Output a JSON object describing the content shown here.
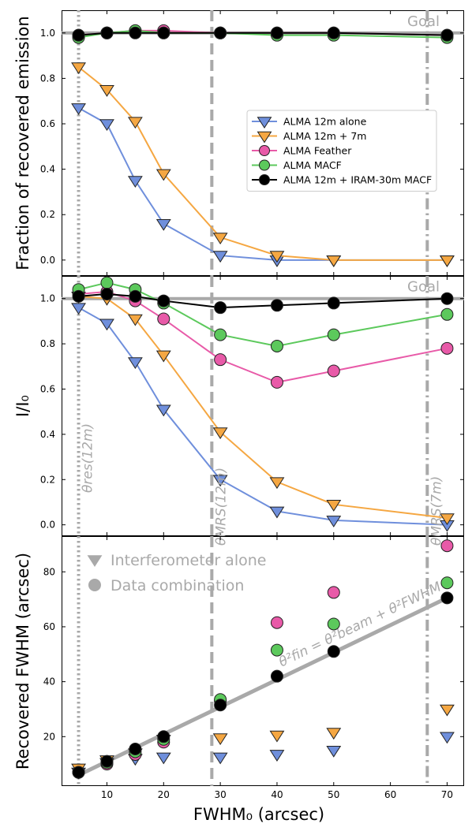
{
  "figure": {
    "xlabel": "FWHM₀ (arcsec)",
    "xlim": [
      2,
      73
    ],
    "xticks": [
      10,
      20,
      30,
      40,
      50,
      60,
      70
    ],
    "vlines": [
      {
        "x": 5,
        "style": "dotted",
        "label": "θres(12m)"
      },
      {
        "x": 28.5,
        "style": "dashed",
        "label": "θMRS(12m)"
      },
      {
        "x": 66.5,
        "style": "dashdot",
        "label": "θMRS(7m)"
      }
    ],
    "colors": {
      "alma12": "#6f8fdc",
      "alma12_7": "#f5a742",
      "feather": "#e85aa8",
      "macf": "#5cc95c",
      "iram": "#000000",
      "reference": "#a9a9a9"
    }
  },
  "chart_data": [
    {
      "type": "line",
      "ylabel": "Fraction of recovered emission",
      "ylim": [
        -0.07,
        1.1
      ],
      "yticks": [
        0.0,
        0.2,
        0.4,
        0.6,
        0.8,
        1.0
      ],
      "reference": {
        "y": 1.0,
        "label": "Goal"
      },
      "legend_position": "center-right",
      "x": [
        5,
        10,
        15,
        20,
        30,
        40,
        50,
        70
      ],
      "series": [
        {
          "name": "ALMA 12m alone",
          "key": "alma12",
          "marker": "triangle-down",
          "values": [
            0.67,
            0.6,
            0.35,
            0.16,
            0.02,
            0.0,
            0.0,
            0.0
          ]
        },
        {
          "name": "ALMA 12m + 7m",
          "key": "alma12_7",
          "marker": "triangle-down",
          "values": [
            0.85,
            0.75,
            0.61,
            0.38,
            0.1,
            0.02,
            0.0,
            0.0
          ]
        },
        {
          "name": "ALMA Feather",
          "key": "feather",
          "marker": "circle",
          "values": [
            0.99,
            1.0,
            1.01,
            1.01,
            1.0,
            1.0,
            1.0,
            0.99
          ]
        },
        {
          "name": "ALMA MACF",
          "key": "macf",
          "marker": "circle",
          "values": [
            0.98,
            1.0,
            1.01,
            1.0,
            1.0,
            0.99,
            0.99,
            0.98
          ]
        },
        {
          "name": "ALMA 12m + IRAM-30m MACF",
          "key": "iram",
          "marker": "circle",
          "values": [
            0.99,
            1.0,
            1.0,
            1.0,
            1.0,
            1.0,
            1.0,
            0.99
          ]
        }
      ]
    },
    {
      "type": "line",
      "ylabel": "I/I₀",
      "ylim": [
        -0.05,
        1.1
      ],
      "yticks": [
        0.0,
        0.2,
        0.4,
        0.6,
        0.8,
        1.0
      ],
      "reference": {
        "y": 1.0,
        "label": "Goal"
      },
      "x": [
        5,
        10,
        15,
        20,
        30,
        40,
        50,
        70
      ],
      "series": [
        {
          "key": "alma12",
          "marker": "triangle-down",
          "values": [
            0.96,
            0.89,
            0.72,
            0.51,
            0.2,
            0.06,
            0.02,
            0.0
          ]
        },
        {
          "key": "alma12_7",
          "marker": "triangle-down",
          "values": [
            1.01,
            1.0,
            0.91,
            0.75,
            0.41,
            0.19,
            0.09,
            0.03
          ]
        },
        {
          "key": "feather",
          "marker": "circle",
          "values": [
            1.02,
            1.03,
            0.99,
            0.91,
            0.73,
            0.63,
            0.68,
            0.78
          ]
        },
        {
          "key": "macf",
          "marker": "circle",
          "values": [
            1.04,
            1.07,
            1.04,
            0.98,
            0.84,
            0.79,
            0.84,
            0.93
          ]
        },
        {
          "key": "iram",
          "marker": "circle",
          "values": [
            1.01,
            1.02,
            1.01,
            0.99,
            0.96,
            0.97,
            0.98,
            1.0
          ]
        }
      ]
    },
    {
      "type": "scatter",
      "ylabel": "Recovered FWHM (arcsec)",
      "ylim": [
        2,
        93
      ],
      "yticks": [
        20,
        40,
        60,
        80
      ],
      "reference_line": {
        "label": "θ²fin = θ²beam + θ²FWHM",
        "points": [
          [
            5,
            6.0
          ],
          [
            70,
            70.5
          ]
        ]
      },
      "legend": [
        {
          "label": "Interferometer alone",
          "marker": "triangle-down"
        },
        {
          "label": "Data combination",
          "marker": "circle"
        }
      ],
      "x": [
        5,
        10,
        15,
        20,
        30,
        40,
        50,
        70
      ],
      "series": [
        {
          "key": "alma12",
          "marker": "triangle-down",
          "values": [
            7.0,
            10.5,
            12.0,
            12.5,
            12.5,
            13.5,
            15.0,
            20.0
          ]
        },
        {
          "key": "alma12_7",
          "marker": "triangle-down",
          "values": [
            8.5,
            11.5,
            14.0,
            19.0,
            19.5,
            20.5,
            21.5,
            30.0
          ]
        },
        {
          "key": "feather",
          "marker": "circle",
          "values": [
            7.0,
            10.0,
            13.5,
            18.0,
            33.0,
            61.5,
            72.5,
            89.5
          ]
        },
        {
          "key": "macf",
          "marker": "circle",
          "values": [
            7.0,
            10.5,
            14.5,
            19.0,
            33.5,
            51.5,
            61.0,
            76.0
          ]
        },
        {
          "key": "iram",
          "marker": "circle",
          "values": [
            7.0,
            11.0,
            15.5,
            20.0,
            31.5,
            42.0,
            51.0,
            70.5
          ]
        }
      ]
    }
  ]
}
